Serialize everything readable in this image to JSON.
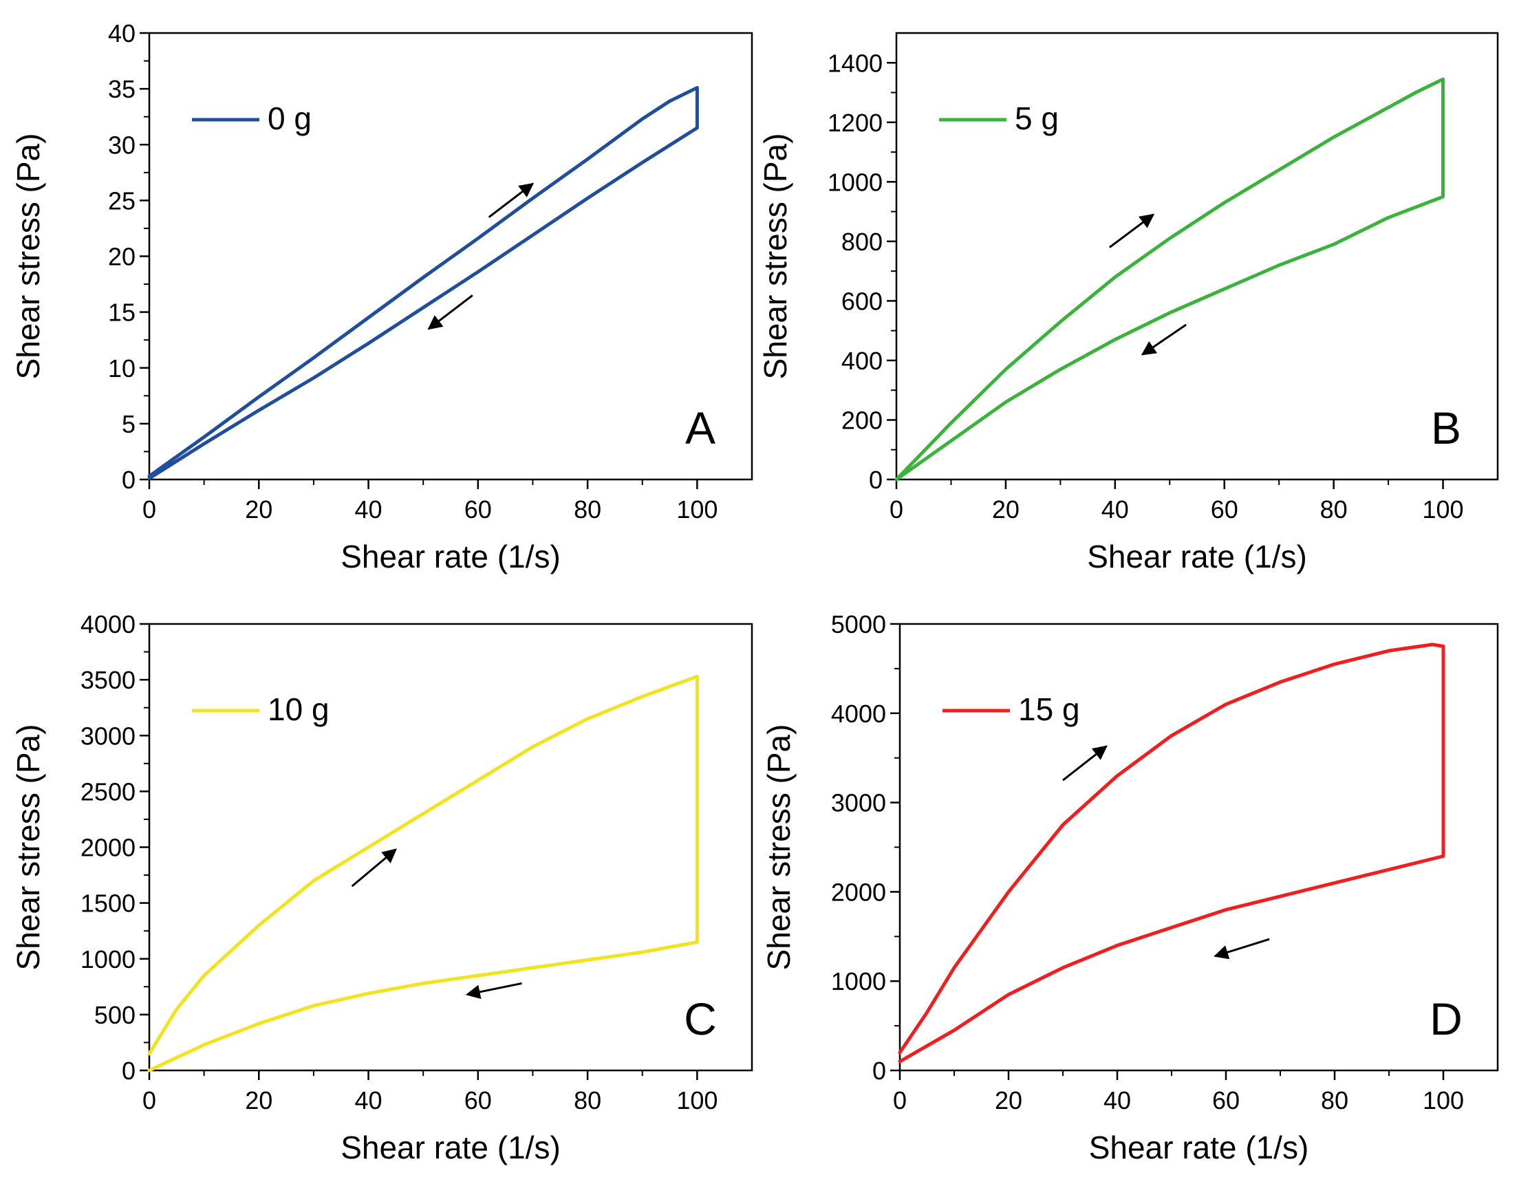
{
  "chart_data": [
    {
      "type": "line",
      "panel_label": "A",
      "xlabel": "Shear rate (1/s)",
      "ylabel": "Shear stress  (Pa)",
      "xlim": [
        0,
        110
      ],
      "ylim": [
        0,
        40
      ],
      "xticks": [
        0,
        20,
        40,
        60,
        80,
        100
      ],
      "yticks": [
        0,
        5,
        10,
        15,
        20,
        25,
        30,
        35,
        40
      ],
      "legend_placement": "top-left",
      "grid": false,
      "series": [
        {
          "name": "0 g",
          "color": "#1f4e9c",
          "x": [
            0,
            10,
            20,
            30,
            40,
            50,
            60,
            70,
            80,
            90,
            95,
            100,
            100,
            90,
            80,
            70,
            60,
            50,
            40,
            30,
            20,
            10,
            0
          ],
          "y": [
            0.3,
            3.8,
            7.4,
            10.9,
            14.5,
            18.1,
            21.6,
            25.2,
            28.7,
            32.3,
            33.9,
            35.1,
            31.5,
            28.4,
            25.2,
            21.9,
            18.6,
            15.4,
            12.2,
            9.1,
            6.2,
            3.2,
            0.1
          ]
        }
      ],
      "arrows": [
        {
          "from": [
            62,
            23.5
          ],
          "to": [
            70,
            26.5
          ],
          "direction": "forward"
        },
        {
          "from": [
            59,
            16.5
          ],
          "to": [
            51,
            13.5
          ],
          "direction": "backward"
        }
      ]
    },
    {
      "type": "line",
      "panel_label": "B",
      "xlabel": "Shear rate (1/s)",
      "ylabel": "Shear stress (Pa)",
      "xlim": [
        0,
        110
      ],
      "ylim": [
        0,
        1500
      ],
      "xticks": [
        0,
        20,
        40,
        60,
        80,
        100
      ],
      "yticks": [
        0,
        200,
        400,
        600,
        800,
        1000,
        1200,
        1400
      ],
      "legend_placement": "top-left",
      "grid": false,
      "series": [
        {
          "name": "5 g",
          "color": "#3bb23b",
          "x": [
            0,
            10,
            20,
            30,
            40,
            50,
            60,
            70,
            80,
            90,
            95,
            100,
            100,
            90,
            80,
            70,
            60,
            50,
            40,
            30,
            20,
            10,
            0
          ],
          "y": [
            0,
            190,
            370,
            530,
            680,
            810,
            930,
            1040,
            1150,
            1250,
            1300,
            1345,
            950,
            880,
            790,
            720,
            640,
            560,
            470,
            370,
            260,
            130,
            0
          ]
        }
      ],
      "arrows": [
        {
          "from": [
            39,
            780
          ],
          "to": [
            47,
            890
          ],
          "direction": "forward"
        },
        {
          "from": [
            53,
            520
          ],
          "to": [
            45,
            420
          ],
          "direction": "backward"
        }
      ]
    },
    {
      "type": "line",
      "panel_label": "C",
      "xlabel": "Shear rate (1/s)",
      "ylabel": "Shear stress (Pa)",
      "xlim": [
        0,
        110
      ],
      "ylim": [
        0,
        4000
      ],
      "xticks": [
        0,
        20,
        40,
        60,
        80,
        100
      ],
      "yticks": [
        0,
        500,
        1000,
        1500,
        2000,
        2500,
        3000,
        3500,
        4000
      ],
      "legend_placement": "top-left",
      "grid": false,
      "series": [
        {
          "name": "10 g",
          "color": "#f2e31f",
          "x": [
            0,
            5,
            10,
            20,
            30,
            40,
            50,
            60,
            70,
            80,
            90,
            100,
            100,
            90,
            80,
            70,
            60,
            50,
            40,
            30,
            20,
            10,
            0
          ],
          "y": [
            150,
            550,
            850,
            1300,
            1700,
            2000,
            2300,
            2600,
            2900,
            3150,
            3350,
            3530,
            1150,
            1060,
            990,
            920,
            850,
            780,
            690,
            580,
            420,
            230,
            0
          ]
        }
      ],
      "arrows": [
        {
          "from": [
            37,
            1650
          ],
          "to": [
            45,
            1980
          ],
          "direction": "forward"
        },
        {
          "from": [
            68,
            780
          ],
          "to": [
            58,
            680
          ],
          "direction": "backward"
        }
      ]
    },
    {
      "type": "line",
      "panel_label": "D",
      "xlabel": "Shear rate (1/s)",
      "ylabel": "Shear stress (Pa)",
      "xlim": [
        0,
        110
      ],
      "ylim": [
        0,
        5000
      ],
      "xticks": [
        0,
        20,
        40,
        60,
        80,
        100
      ],
      "yticks": [
        0,
        1000,
        2000,
        3000,
        4000,
        5000
      ],
      "legend_placement": "top-left",
      "grid": false,
      "series": [
        {
          "name": "15 g",
          "color": "#f01e1e",
          "x": [
            0,
            5,
            10,
            20,
            30,
            40,
            50,
            60,
            70,
            80,
            90,
            98,
            100,
            100,
            90,
            80,
            70,
            60,
            50,
            40,
            30,
            20,
            10,
            0
          ],
          "y": [
            200,
            650,
            1150,
            2000,
            2750,
            3300,
            3750,
            4100,
            4350,
            4550,
            4700,
            4770,
            4750,
            2400,
            2250,
            2100,
            1950,
            1800,
            1600,
            1400,
            1150,
            850,
            450,
            100
          ]
        }
      ],
      "arrows": [
        {
          "from": [
            30,
            3250
          ],
          "to": [
            38,
            3630
          ],
          "direction": "forward"
        },
        {
          "from": [
            68,
            1470
          ],
          "to": [
            58,
            1280
          ],
          "direction": "backward"
        }
      ]
    }
  ]
}
